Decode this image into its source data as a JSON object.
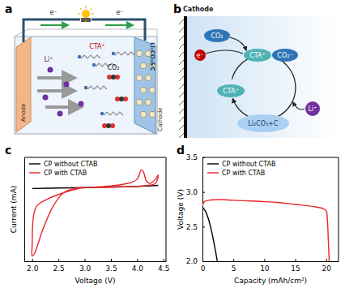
{
  "chart_data": [
    {
      "type": "line",
      "title": "c",
      "x_label": "Voltage (V)",
      "y_label": "Current (mA)",
      "xlim": [
        1.85,
        4.55
      ],
      "xticks": [
        {
          "value": 2,
          "label": "2.0"
        },
        {
          "value": 2.5,
          "label": "2.5"
        },
        {
          "value": 3,
          "label": "3.0"
        },
        {
          "value": 3.5,
          "label": "3.5"
        },
        {
          "value": 4,
          "label": "4.0"
        },
        {
          "value": 4.5,
          "label": "4.5"
        }
      ],
      "ylim": [
        0,
        10
      ],
      "tick_labels": "x",
      "legend": "upper left",
      "series": [
        {
          "name": "CP without CTAB",
          "color": "#000000",
          "x": [
            2.0,
            2.5,
            3.0,
            3.5,
            4.0,
            4.4
          ],
          "values": [
            7.0,
            7.05,
            7.1,
            7.15,
            7.2,
            7.3
          ]
        },
        {
          "name": "CP with CTAB",
          "color": "#e8262a",
          "x": [
            3.0,
            2.8,
            2.6,
            2.4,
            2.2,
            2.1,
            2.05,
            2.0,
            2.0,
            2.03,
            2.1,
            2.3,
            2.6,
            2.9,
            3.2,
            3.6,
            3.9,
            4.0,
            4.08,
            4.12,
            4.18,
            4.25,
            4.35,
            4.4,
            4.35,
            4.2,
            4.0,
            3.6,
            3.2,
            3.0
          ],
          "values": [
            7.1,
            7.0,
            6.6,
            5.3,
            3.0,
            1.5,
            0.8,
            0.5,
            1.6,
            4.5,
            5.4,
            6.0,
            6.6,
            7.0,
            7.15,
            7.3,
            7.6,
            7.9,
            8.8,
            8.6,
            7.7,
            7.5,
            7.9,
            8.3,
            7.5,
            7.3,
            7.2,
            7.15,
            7.1,
            7.1
          ]
        }
      ]
    },
    {
      "type": "line",
      "title": "d",
      "x_label": "Capacity (mAh/cm²)",
      "y_label": "Voltage (V)",
      "xlim": [
        0,
        22
      ],
      "xticks": [
        0,
        5,
        10,
        15,
        20
      ],
      "ylim": [
        2.0,
        3.5
      ],
      "yticks": [
        {
          "value": 2.0,
          "label": "2.0"
        },
        {
          "value": 2.5,
          "label": "2.5"
        },
        {
          "value": 3.0,
          "label": "3.0"
        },
        {
          "value": 3.5,
          "label": "3.5"
        }
      ],
      "legend": "upper left",
      "series": [
        {
          "name": "CP without CTAB",
          "color": "#000000",
          "x": [
            0,
            0.5,
            1,
            1.5,
            2,
            2.4
          ],
          "values": [
            2.78,
            2.72,
            2.6,
            2.42,
            2.2,
            2.0
          ]
        },
        {
          "name": "CP with CTAB",
          "color": "#e8262a",
          "x": [
            0,
            0.3,
            1,
            3,
            5,
            8,
            10,
            12,
            15,
            18,
            19.5,
            20,
            20.2,
            20.35,
            20.5
          ],
          "values": [
            2.8,
            2.86,
            2.88,
            2.89,
            2.88,
            2.87,
            2.86,
            2.85,
            2.82,
            2.79,
            2.76,
            2.73,
            2.6,
            2.3,
            2.0
          ]
        }
      ]
    }
  ],
  "diagram_a": {
    "label": "a",
    "electron": "e⁻",
    "anode": "Anode",
    "cathode": "Cathode",
    "cation": "CTA⁺",
    "lithium": "Li⁺",
    "gas": "CO₂",
    "product": "Li₂CO₃&C"
  },
  "diagram_b": {
    "label": "b",
    "cathode": "Cathode",
    "gas": "CO₂",
    "electron": "e⁻",
    "cation": "CTA⁺",
    "radical": "CO₂⁻",
    "lithium": "Li⁺",
    "product": "Li₂CO₃+C"
  }
}
